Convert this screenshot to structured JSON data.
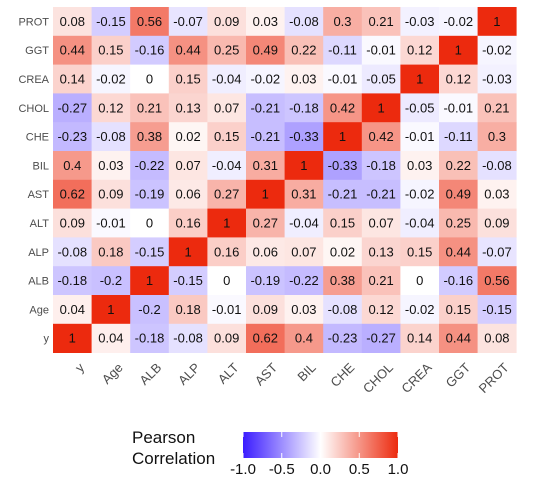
{
  "chart_data": {
    "type": "heatmap",
    "x_labels": [
      "y",
      "Age",
      "ALB",
      "ALP",
      "ALT",
      "AST",
      "BIL",
      "CHE",
      "CHOL",
      "CREA",
      "GGT",
      "PROT"
    ],
    "y_labels_top_to_bottom": [
      "PROT",
      "GGT",
      "CREA",
      "CHOL",
      "CHE",
      "BIL",
      "AST",
      "ALT",
      "ALP",
      "ALB",
      "Age",
      "y"
    ],
    "rows": [
      [
        "0.08",
        "-0.15",
        "0.56",
        "-0.07",
        "0.09",
        "0.03",
        "-0.08",
        "0.3",
        "0.21",
        "-0.03",
        "-0.02",
        "1"
      ],
      [
        "0.44",
        "0.15",
        "-0.16",
        "0.44",
        "0.25",
        "0.49",
        "0.22",
        "-0.11",
        "-0.01",
        "0.12",
        "1",
        "-0.02"
      ],
      [
        "0.14",
        "-0.02",
        "0",
        "0.15",
        "-0.04",
        "-0.02",
        "0.03",
        "-0.01",
        "-0.05",
        "1",
        "0.12",
        "-0.03"
      ],
      [
        "-0.27",
        "0.12",
        "0.21",
        "0.13",
        "0.07",
        "-0.21",
        "-0.18",
        "0.42",
        "1",
        "-0.05",
        "-0.01",
        "0.21"
      ],
      [
        "-0.23",
        "-0.08",
        "0.38",
        "0.02",
        "0.15",
        "-0.21",
        "-0.33",
        "1",
        "0.42",
        "-0.01",
        "-0.11",
        "0.3"
      ],
      [
        "0.4",
        "0.03",
        "-0.22",
        "0.07",
        "-0.04",
        "0.31",
        "1",
        "-0.33",
        "-0.18",
        "0.03",
        "0.22",
        "-0.08"
      ],
      [
        "0.62",
        "0.09",
        "-0.19",
        "0.06",
        "0.27",
        "1",
        "0.31",
        "-0.21",
        "-0.21",
        "-0.02",
        "0.49",
        "0.03"
      ],
      [
        "0.09",
        "-0.01",
        "0",
        "0.16",
        "1",
        "0.27",
        "-0.04",
        "0.15",
        "0.07",
        "-0.04",
        "0.25",
        "0.09"
      ],
      [
        "-0.08",
        "0.18",
        "-0.15",
        "1",
        "0.16",
        "0.06",
        "0.07",
        "0.02",
        "0.13",
        "0.15",
        "0.44",
        "-0.07"
      ],
      [
        "-0.18",
        "-0.2",
        "1",
        "-0.15",
        "0",
        "-0.19",
        "-0.22",
        "0.38",
        "0.21",
        "0",
        "-0.16",
        "0.56"
      ],
      [
        "0.04",
        "1",
        "-0.2",
        "0.18",
        "-0.01",
        "0.09",
        "0.03",
        "-0.08",
        "0.12",
        "-0.02",
        "0.15",
        "-0.15"
      ],
      [
        "1",
        "0.04",
        "-0.18",
        "-0.08",
        "0.09",
        "0.62",
        "0.4",
        "-0.23",
        "-0.27",
        "0.14",
        "0.44",
        "0.08"
      ]
    ],
    "legend": {
      "title_line1": "Pearson",
      "title_line2": "Correlation",
      "range": [
        -1,
        1
      ],
      "tick_labels": [
        "-1.0",
        "-0.5",
        "0.0",
        "0.5",
        "1.0"
      ],
      "colors": {
        "low": "#3b1cff",
        "mid": "#ffffff",
        "high": "#ec2a0e"
      }
    }
  }
}
